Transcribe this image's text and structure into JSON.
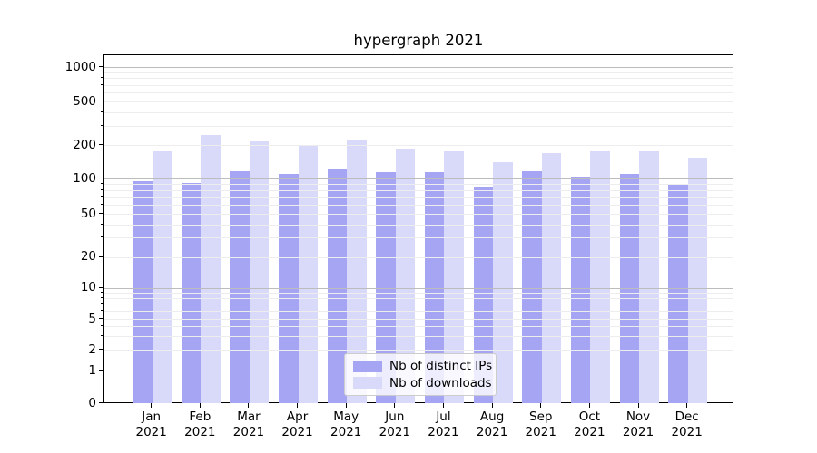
{
  "chart_data": {
    "type": "bar",
    "title": "hypergraph 2021",
    "yscale": "symlog",
    "ylim": [
      0,
      1300
    ],
    "grid": "both",
    "grid_major_color": "#bcbcbc",
    "grid_minor_color": "#ededed",
    "y_tick_labels": [
      0,
      1,
      2,
      5,
      10,
      20,
      50,
      100,
      200,
      500,
      1000
    ],
    "x_tick_labels": [
      [
        "Jan",
        "2021"
      ],
      [
        "Feb",
        "2021"
      ],
      [
        "Mar",
        "2021"
      ],
      [
        "Apr",
        "2021"
      ],
      [
        "May",
        "2021"
      ],
      [
        "Jun",
        "2021"
      ],
      [
        "Jul",
        "2021"
      ],
      [
        "Aug",
        "2021"
      ],
      [
        "Sep",
        "2021"
      ],
      [
        "Oct",
        "2021"
      ],
      [
        "Nov",
        "2021"
      ],
      [
        "Dec",
        "2021"
      ]
    ],
    "series": [
      {
        "name": "Nb of distinct IPs",
        "color": "#a5a5f3",
        "values": [
          94,
          91,
          117,
          110,
          124,
          113,
          113,
          85,
          117,
          103,
          110,
          89
        ]
      },
      {
        "name": "Nb of downloads",
        "color": "#d9d9fa",
        "values": [
          175,
          248,
          215,
          198,
          220,
          186,
          177,
          141,
          168,
          175,
          177,
          154
        ]
      }
    ],
    "legend_position": "lower center"
  }
}
